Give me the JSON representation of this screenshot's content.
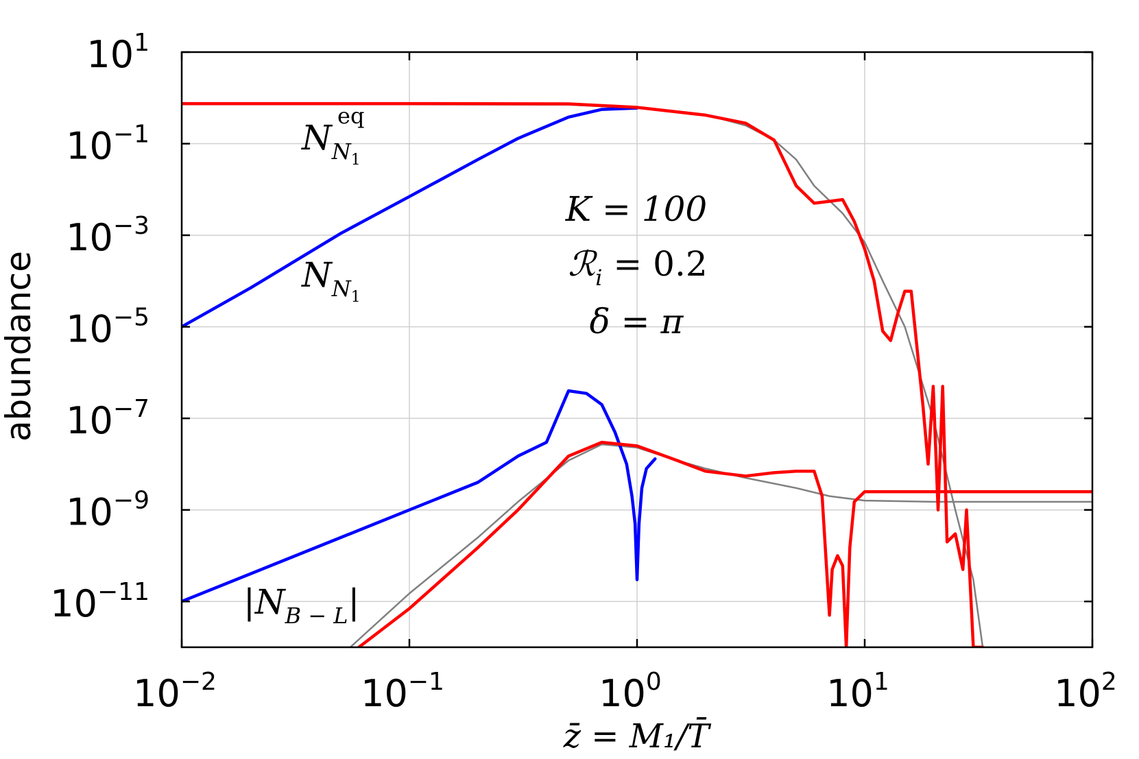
{
  "chart_data": {
    "type": "line",
    "xlabel": "z̄ = M₁/T̄",
    "ylabel": "abundance",
    "xscale": "log",
    "yscale": "log",
    "xlim": [
      0.01,
      100
    ],
    "ylim": [
      1e-12,
      10
    ],
    "grid": true,
    "x_ticks": [
      {
        "base": "10",
        "exp": "−2",
        "value": 0.01
      },
      {
        "base": "10",
        "exp": "−1",
        "value": 0.1
      },
      {
        "base": "10",
        "exp": "0",
        "value": 1
      },
      {
        "base": "10",
        "exp": "1",
        "value": 10
      },
      {
        "base": "10",
        "exp": "2",
        "value": 100
      }
    ],
    "y_ticks": [
      {
        "base": "10",
        "exp": "1",
        "value": 10
      },
      {
        "base": "10",
        "exp": "−1",
        "value": 0.1
      },
      {
        "base": "10",
        "exp": "−3",
        "value": 0.001
      },
      {
        "base": "10",
        "exp": "−5",
        "value": 1e-05
      },
      {
        "base": "10",
        "exp": "−7",
        "value": 1e-07
      },
      {
        "base": "10",
        "exp": "−9",
        "value": 1e-09
      },
      {
        "base": "10",
        "exp": "−11",
        "value": 1e-11
      }
    ],
    "annotations": [
      {
        "text": "K = 100"
      },
      {
        "text": "ℛ",
        "sub": "i",
        "rest": " = 0.2"
      },
      {
        "text": "δ = π"
      }
    ],
    "curve_labels": [
      {
        "main": "N",
        "sub": "N",
        "subsub": "1",
        "sup": "eq"
      },
      {
        "main": "N",
        "sub": "N",
        "subsub": "1"
      },
      {
        "main": "|N",
        "sub": "B − L",
        "rest": "|"
      }
    ],
    "series": [
      {
        "color": "#0000ff",
        "x": [
          0.01,
          0.02,
          0.05,
          0.1,
          0.2,
          0.3,
          0.5,
          0.7,
          1.0
        ],
        "y": [
          1e-05,
          7e-05,
          0.0011,
          0.007,
          0.045,
          0.13,
          0.38,
          0.56,
          0.6
        ]
      },
      {
        "color": "#ff0000",
        "x": [
          0.01,
          0.1,
          0.5,
          1,
          2,
          3,
          4,
          5,
          6,
          7,
          8,
          9,
          10,
          11,
          12,
          13,
          14,
          15,
          16,
          18,
          19,
          20,
          21,
          22,
          23,
          25,
          27,
          28,
          30,
          33
        ],
        "y": [
          0.75,
          0.75,
          0.74,
          0.62,
          0.42,
          0.28,
          0.12,
          0.012,
          0.005,
          0.0055,
          0.006,
          0.002,
          0.0005,
          0.0001,
          8e-06,
          5e-06,
          2e-05,
          6e-05,
          6e-05,
          2e-07,
          1e-08,
          5e-07,
          1e-09,
          5e-07,
          2e-10,
          3e-10,
          5e-11,
          1e-09,
          1e-12,
          1e-12
        ]
      },
      {
        "color": "#808080",
        "x": [
          0.01,
          0.1,
          0.5,
          1,
          2,
          3,
          4,
          5,
          6,
          8,
          10,
          12,
          15,
          20,
          25,
          30,
          33
        ],
        "y": [
          0.72,
          0.72,
          0.71,
          0.6,
          0.43,
          0.25,
          0.12,
          0.045,
          0.012,
          0.003,
          0.0007,
          0.0001,
          1e-05,
          1e-07,
          1e-09,
          3e-11,
          1e-12
        ]
      },
      {
        "color": "#0000ff",
        "x": [
          0.01,
          0.05,
          0.1,
          0.2,
          0.3,
          0.4,
          0.5,
          0.6,
          0.7,
          0.8,
          0.9,
          0.95,
          0.98,
          1.0,
          1.02,
          1.05,
          1.1,
          1.2
        ],
        "y": [
          1e-11,
          2.5e-10,
          1e-09,
          4e-09,
          1.5e-08,
          3e-08,
          4e-07,
          3.5e-07,
          2e-07,
          5e-08,
          1e-08,
          2e-09,
          5e-10,
          3e-11,
          5e-10,
          3e-09,
          8e-09,
          1.3e-08
        ]
      },
      {
        "color": "#ff0000",
        "x": [
          0.06,
          0.1,
          0.2,
          0.3,
          0.5,
          0.7,
          1.0,
          1.5,
          2,
          3,
          4,
          5,
          6,
          6.5,
          7,
          7.2,
          7.6,
          8.0,
          8.3,
          8.6,
          9,
          10,
          12,
          15,
          20,
          30,
          50,
          100
        ],
        "y": [
          1e-12,
          7e-12,
          1.5e-10,
          1e-09,
          1.5e-08,
          3e-08,
          2.5e-08,
          1.2e-08,
          7e-09,
          5.5e-09,
          6.5e-09,
          7e-09,
          7e-09,
          2e-09,
          5e-12,
          5e-11,
          1e-10,
          6e-11,
          1e-12,
          1.5e-10,
          1.5e-09,
          2.5e-09,
          2.5e-09,
          2.5e-09,
          2.5e-09,
          2.5e-09,
          2.5e-09,
          2.5e-09
        ]
      },
      {
        "color": "#808080",
        "x": [
          0.055,
          0.1,
          0.2,
          0.3,
          0.5,
          0.7,
          1.0,
          1.5,
          2,
          3,
          5,
          7,
          10,
          20,
          50,
          100
        ],
        "y": [
          1e-12,
          1.5e-11,
          2.5e-10,
          1.5e-09,
          1.2e-08,
          2.7e-08,
          2.3e-08,
          1.2e-08,
          8e-09,
          5e-09,
          3e-09,
          2e-09,
          1.6e-09,
          1.5e-09,
          1.5e-09,
          1.5e-09
        ]
      }
    ]
  }
}
